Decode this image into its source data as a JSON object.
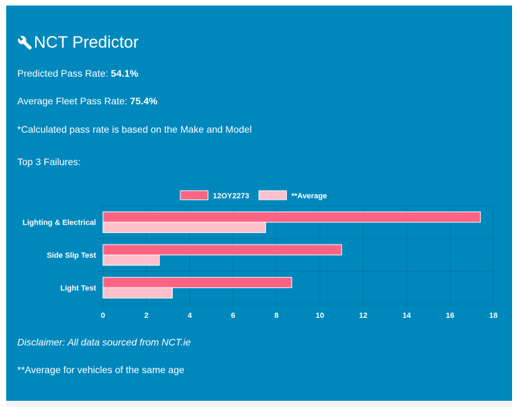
{
  "header": {
    "icon": "wrench-icon",
    "title": "NCT Predictor"
  },
  "stats": {
    "predicted_label": "Predicted Pass Rate:",
    "predicted_value": "54.1%",
    "fleet_label": "Average Fleet Pass Rate:",
    "fleet_value": "75.4%",
    "note": "*Calculated pass rate is based on the Make and Model",
    "top_failures_label": "Top 3 Failures:"
  },
  "chart_data": {
    "type": "bar",
    "orientation": "horizontal",
    "categories": [
      "Lighting & Electrical",
      "Side Slip Test",
      "Light Test"
    ],
    "series": [
      {
        "name": "12OY2273",
        "values": [
          17.4,
          11.0,
          8.7
        ],
        "color": "#ff6384"
      },
      {
        "name": "**Average",
        "values": [
          7.5,
          2.6,
          3.2
        ],
        "color": "#ffc0cb"
      }
    ],
    "xlim": [
      0,
      18
    ],
    "xticks": [
      0,
      2,
      4,
      6,
      8,
      10,
      12,
      14,
      16,
      18
    ],
    "grid": true,
    "legend": "top-center"
  },
  "footer": {
    "disclaimer": "Disclaimer: All data sourced from NCT.ie",
    "average_note": "**Average for vehicles of the same age"
  }
}
